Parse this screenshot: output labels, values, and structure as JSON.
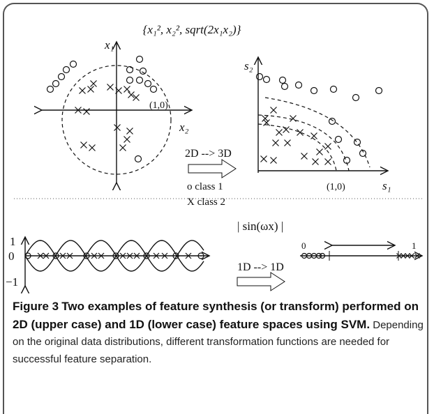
{
  "figure": {
    "top": {
      "mapping": "{x₁², x₂², sqrt(2x₁x₂)}",
      "left_y_axis": "x₁",
      "left_x_axis": "x₂",
      "left_point": "(1,0)",
      "arrow_label": "2D --> 3D",
      "legend_class1": "o class 1",
      "legend_class2": "X class 2",
      "right_y_axis": "s₂",
      "right_x_axis": "s₁",
      "right_point": "(1,0)"
    },
    "bottom": {
      "tick_1": "1",
      "tick_0": "0",
      "tick_minus1": "−1",
      "function": "| sin(ωx) |",
      "arrow_label": "1D --> 1D",
      "line_0": "0",
      "line_1": "1"
    }
  },
  "caption": {
    "label": "Figure 3",
    "title": "Two examples of feature synthesis (or transform) performed on 2D (upper case) and 1D (lower case) feature spaces using SVM.",
    "text": "Depending on the original data distributions, different transformation functions are needed for successful feature separation."
  }
}
